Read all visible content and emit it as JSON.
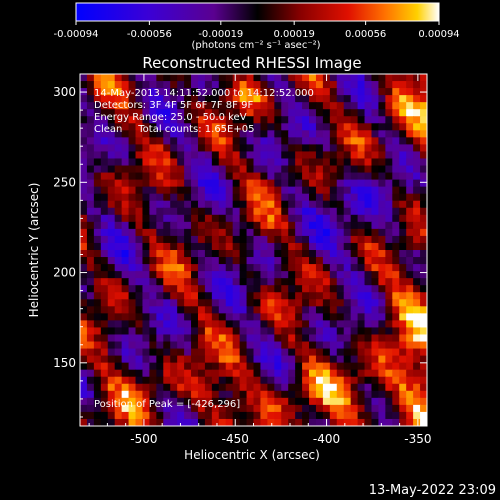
{
  "figure": {
    "title": "Reconstructed RHESSI Image",
    "footer_timestamp": "13-May-2022 23:09"
  },
  "colorbar": {
    "tick_labels": [
      "-0.00094",
      "-0.00056",
      "-0.00019",
      "0.00019",
      "0.00056",
      "0.00094"
    ],
    "tick_values": [
      -0.00094,
      -0.00056,
      -0.00019,
      0.00019,
      0.00056,
      0.00094
    ],
    "range": [
      -0.00094,
      0.00094
    ],
    "units_label": "(photons cm⁻² s⁻¹ asec⁻²)",
    "colormap_stops": [
      "#0000ff",
      "#3b00d6",
      "#7a00a0",
      "#000000",
      "#7a0000",
      "#d40000",
      "#ff5000",
      "#ffb000",
      "#ffffff"
    ]
  },
  "annotations": {
    "line1": "14-May-2013 14:11:52.000 to 14:12:52.000",
    "line2": "Detectors: 3F 4F 5F 6F 7F 8F 9F",
    "line3": "Energy Range: 25.0 - 50.0 keV",
    "line4": "Clean     Total counts: 1.65E+05",
    "peak": "Position of Peak = [-426,296]"
  },
  "chart_data": {
    "type": "heatmap",
    "title": "Reconstructed RHESSI Image",
    "xlabel": "Heliocentric X (arcsec)",
    "ylabel": "Heliocentric Y (arcsec)",
    "xlim": [
      -535,
      -345
    ],
    "ylim": [
      115,
      310
    ],
    "x_ticks": [
      -500,
      -450,
      -400,
      -350
    ],
    "x_tick_labels": [
      "-500",
      "-450",
      "-400",
      "-350"
    ],
    "y_ticks": [
      150,
      200,
      250,
      300
    ],
    "y_tick_labels": [
      "150",
      "200",
      "250",
      "300"
    ],
    "peak_position": [
      -426,
      296
    ],
    "value_range": [
      -0.00094,
      0.00094
    ],
    "grid": false
  }
}
